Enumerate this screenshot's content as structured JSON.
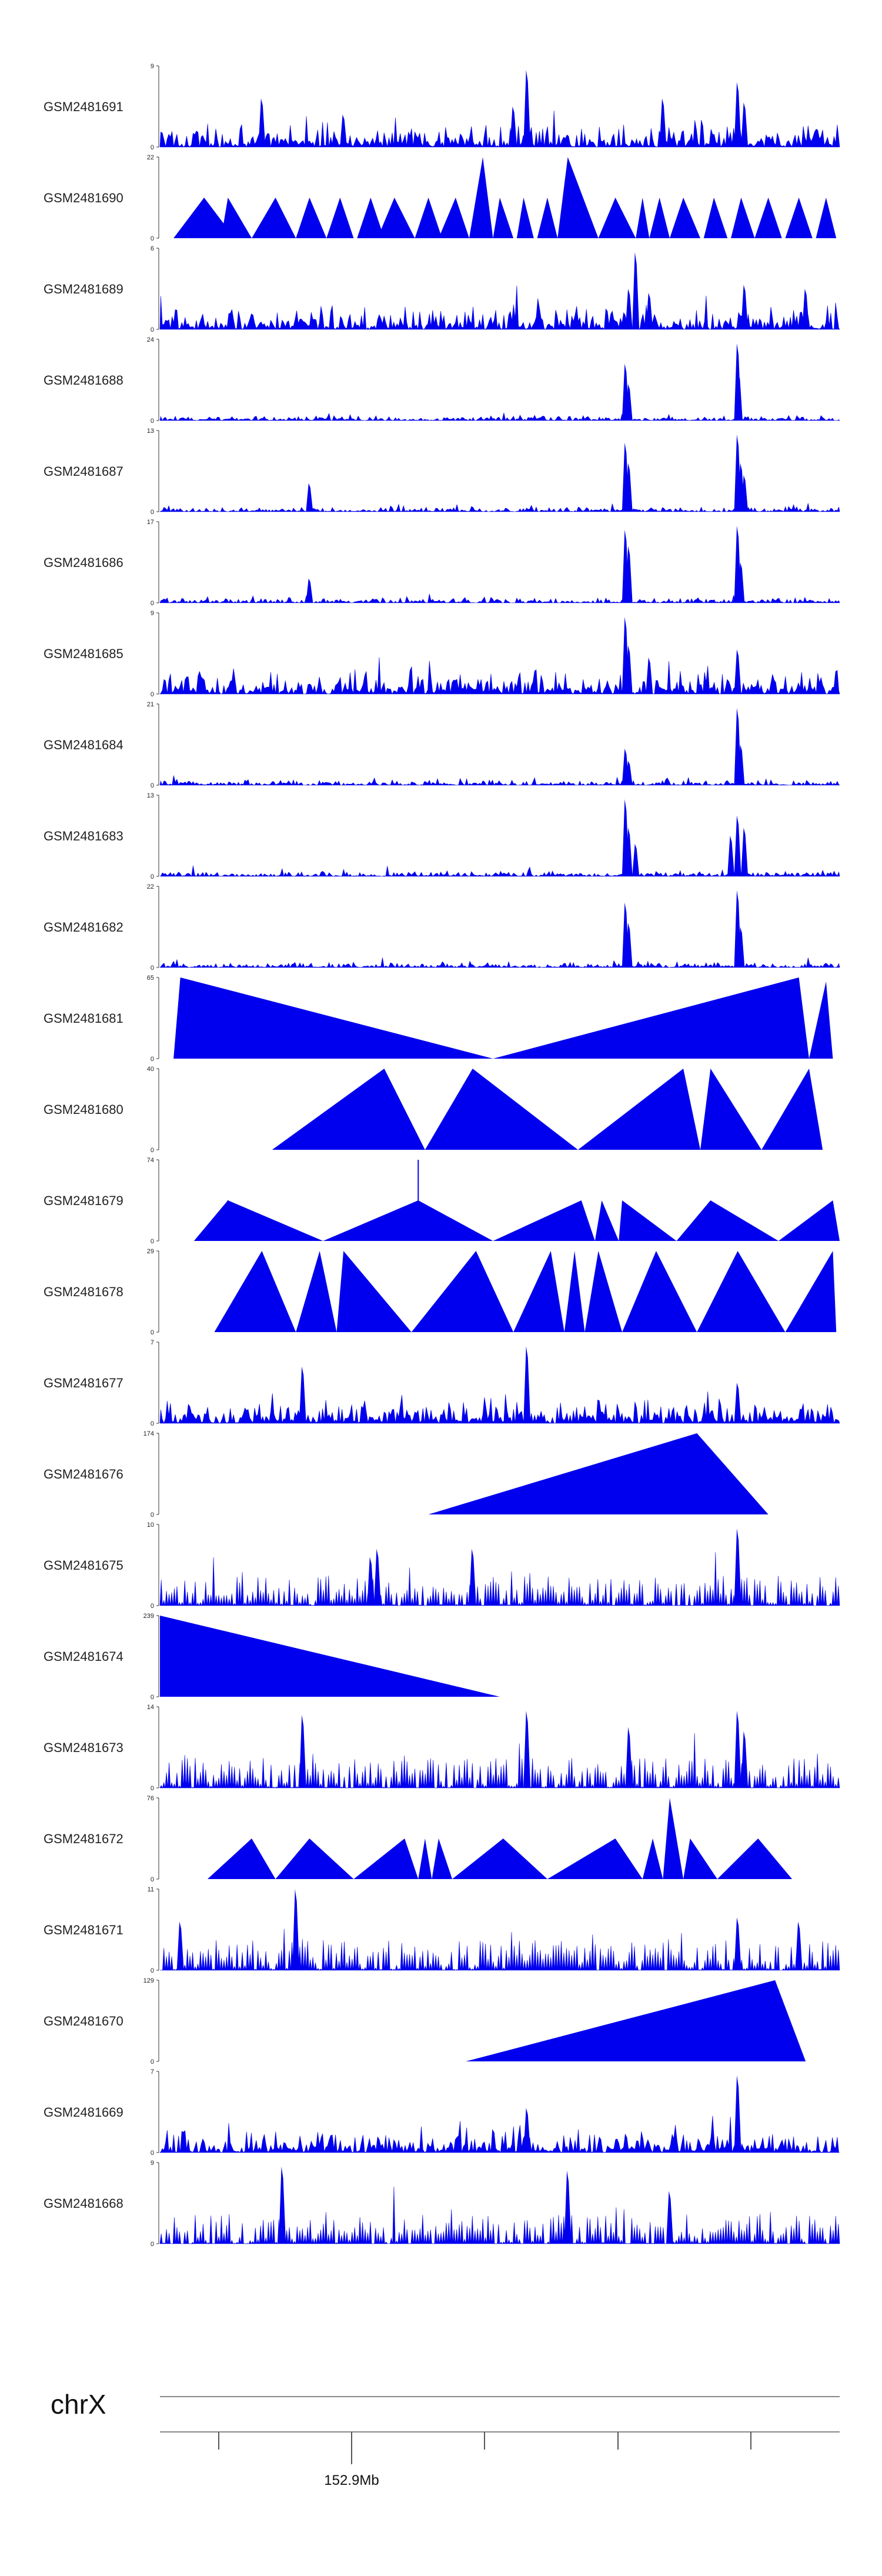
{
  "chart_data": {
    "type": "area",
    "fill_color": "#0000ee",
    "chromosome": "chrX",
    "position_label": "152.9Mb",
    "tracks": [
      {
        "name": "GSM2481691",
        "ymax": 9,
        "ymin": 0,
        "style": "dense",
        "peaks": [
          [
            0.15,
            0.6
          ],
          [
            0.27,
            0.4
          ],
          [
            0.54,
            0.95
          ],
          [
            0.52,
            0.5
          ],
          [
            0.74,
            0.6
          ],
          [
            0.85,
            0.8
          ],
          [
            0.86,
            0.55
          ]
        ]
      },
      {
        "name": "GSM2481690",
        "ymax": 22,
        "ymin": 0,
        "style": "triangles",
        "tris": [
          [
            0.02,
            0.065,
            0.11,
            0.5
          ],
          [
            0.09,
            0.1,
            0.135,
            0.5
          ],
          [
            0.135,
            0.17,
            0.2,
            0.5
          ],
          [
            0.2,
            0.22,
            0.245,
            0.5
          ],
          [
            0.245,
            0.265,
            0.285,
            0.5
          ],
          [
            0.29,
            0.31,
            0.33,
            0.5
          ],
          [
            0.32,
            0.345,
            0.375,
            0.5
          ],
          [
            0.375,
            0.395,
            0.415,
            0.5
          ],
          [
            0.41,
            0.435,
            0.455,
            0.5
          ],
          [
            0.455,
            0.475,
            0.49,
            1.0
          ],
          [
            0.49,
            0.5,
            0.52,
            0.5
          ],
          [
            0.525,
            0.535,
            0.55,
            0.5
          ],
          [
            0.555,
            0.57,
            0.585,
            0.5
          ],
          [
            0.585,
            0.6,
            0.645,
            1.0
          ],
          [
            0.645,
            0.67,
            0.7,
            0.5
          ],
          [
            0.7,
            0.71,
            0.72,
            0.5
          ],
          [
            0.72,
            0.735,
            0.75,
            0.5
          ],
          [
            0.75,
            0.77,
            0.795,
            0.5
          ],
          [
            0.8,
            0.815,
            0.835,
            0.5
          ],
          [
            0.84,
            0.855,
            0.875,
            0.5
          ],
          [
            0.875,
            0.895,
            0.915,
            0.5
          ],
          [
            0.92,
            0.94,
            0.96,
            0.5
          ],
          [
            0.965,
            0.98,
            0.995,
            0.5
          ]
        ]
      },
      {
        "name": "GSM2481689",
        "ymax": 6,
        "ymin": 0,
        "style": "dense",
        "peaks": [
          [
            0.7,
            0.95
          ],
          [
            0.69,
            0.5
          ],
          [
            0.72,
            0.45
          ],
          [
            0.86,
            0.55
          ],
          [
            0.95,
            0.5
          ]
        ]
      },
      {
        "name": "GSM2481688",
        "ymax": 24,
        "ymin": 0,
        "style": "sparse",
        "peaks": [
          [
            0.685,
            0.7
          ],
          [
            0.69,
            0.45
          ],
          [
            0.85,
            0.95
          ],
          [
            0.852,
            0.6
          ]
        ]
      },
      {
        "name": "GSM2481687",
        "ymax": 13,
        "ymin": 0,
        "style": "sparse",
        "peaks": [
          [
            0.685,
            0.85
          ],
          [
            0.69,
            0.6
          ],
          [
            0.85,
            0.95
          ],
          [
            0.855,
            0.6
          ],
          [
            0.22,
            0.35
          ],
          [
            0.86,
            0.45
          ]
        ]
      },
      {
        "name": "GSM2481686",
        "ymax": 17,
        "ymin": 0,
        "style": "sparse",
        "peaks": [
          [
            0.22,
            0.3
          ],
          [
            0.685,
            0.9
          ],
          [
            0.69,
            0.7
          ],
          [
            0.85,
            0.95
          ],
          [
            0.855,
            0.5
          ]
        ]
      },
      {
        "name": "GSM2481685",
        "ymax": 9,
        "ymin": 0,
        "style": "dense",
        "peaks": [
          [
            0.685,
            0.95
          ],
          [
            0.69,
            0.6
          ],
          [
            0.72,
            0.45
          ],
          [
            0.85,
            0.55
          ]
        ]
      },
      {
        "name": "GSM2481684",
        "ymax": 21,
        "ymin": 0,
        "style": "sparse",
        "peaks": [
          [
            0.685,
            0.45
          ],
          [
            0.69,
            0.3
          ],
          [
            0.85,
            0.95
          ],
          [
            0.855,
            0.5
          ]
        ]
      },
      {
        "name": "GSM2481683",
        "ymax": 13,
        "ymin": 0,
        "style": "sparse",
        "peaks": [
          [
            0.685,
            0.95
          ],
          [
            0.69,
            0.6
          ],
          [
            0.7,
            0.4
          ],
          [
            0.84,
            0.5
          ],
          [
            0.85,
            0.75
          ],
          [
            0.86,
            0.6
          ]
        ]
      },
      {
        "name": "GSM2481682",
        "ymax": 22,
        "ymin": 0,
        "style": "sparse",
        "peaks": [
          [
            0.685,
            0.8
          ],
          [
            0.69,
            0.55
          ],
          [
            0.85,
            0.95
          ],
          [
            0.855,
            0.5
          ]
        ]
      },
      {
        "name": "GSM2481681",
        "ymax": 65,
        "ymin": 0,
        "style": "triangles",
        "tris": [
          [
            0.02,
            0.03,
            0.49,
            1.0
          ],
          [
            0.49,
            0.94,
            0.955,
            1.0
          ],
          [
            0.955,
            0.98,
            0.99,
            0.95
          ]
        ]
      },
      {
        "name": "GSM2481680",
        "ymax": 40,
        "ymin": 0,
        "style": "triangles",
        "tris": [
          [
            0.165,
            0.33,
            0.39,
            1.0
          ],
          [
            0.39,
            0.46,
            0.615,
            1.0
          ],
          [
            0.615,
            0.77,
            0.795,
            1.0
          ],
          [
            0.795,
            0.81,
            0.885,
            1.0
          ],
          [
            0.885,
            0.955,
            0.975,
            1.0
          ]
        ]
      },
      {
        "name": "GSM2481679",
        "ymax": 74,
        "ymin": 0,
        "style": "triangles",
        "tris": [
          [
            0.05,
            0.1,
            0.24,
            0.5
          ],
          [
            0.24,
            0.38,
            0.49,
            0.5
          ],
          [
            0.49,
            0.62,
            0.64,
            0.5
          ],
          [
            0.64,
            0.65,
            0.675,
            0.5
          ],
          [
            0.675,
            0.68,
            0.76,
            0.5
          ],
          [
            0.76,
            0.81,
            0.91,
            0.5
          ],
          [
            0.91,
            0.99,
            1.0,
            0.5
          ]
        ],
        "spikes": [
          [
            0.38,
            1.0
          ],
          [
            0.1,
            0.5
          ]
        ]
      },
      {
        "name": "GSM2481678",
        "ymax": 29,
        "ymin": 0,
        "style": "triangles",
        "tris": [
          [
            0.08,
            0.15,
            0.2,
            1.0
          ],
          [
            0.2,
            0.235,
            0.26,
            1.0
          ],
          [
            0.26,
            0.27,
            0.37,
            1.0
          ],
          [
            0.37,
            0.465,
            0.52,
            1.0
          ],
          [
            0.52,
            0.575,
            0.595,
            1.0
          ],
          [
            0.595,
            0.61,
            0.625,
            1.0
          ],
          [
            0.625,
            0.645,
            0.68,
            1.0
          ],
          [
            0.68,
            0.73,
            0.79,
            1.0
          ],
          [
            0.79,
            0.85,
            0.92,
            1.0
          ],
          [
            0.92,
            0.99,
            0.995,
            1.0
          ]
        ]
      },
      {
        "name": "GSM2481677",
        "ymax": 7,
        "ymin": 0,
        "style": "dense",
        "peaks": [
          [
            0.54,
            0.95
          ],
          [
            0.21,
            0.7
          ],
          [
            0.85,
            0.5
          ]
        ]
      },
      {
        "name": "GSM2481676",
        "ymax": 174,
        "ymin": 0,
        "style": "triangles",
        "tris": [
          [
            0.395,
            0.79,
            0.895,
            1.0
          ]
        ]
      },
      {
        "name": "GSM2481675",
        "ymax": 10,
        "ymin": 0,
        "style": "spiky",
        "peaks": [
          [
            0.85,
            0.95
          ],
          [
            0.32,
            0.7
          ],
          [
            0.46,
            0.7
          ],
          [
            0.31,
            0.6
          ]
        ]
      },
      {
        "name": "GSM2481674",
        "ymax": 239,
        "ymin": 0,
        "style": "triangles",
        "tris": [
          [
            0.0,
            0.0,
            0.5,
            1.0
          ]
        ]
      },
      {
        "name": "GSM2481673",
        "ymax": 14,
        "ymin": 0,
        "style": "spiky",
        "peaks": [
          [
            0.21,
            0.9
          ],
          [
            0.54,
            0.95
          ],
          [
            0.69,
            0.75
          ],
          [
            0.85,
            0.95
          ],
          [
            0.86,
            0.7
          ]
        ]
      },
      {
        "name": "GSM2481672",
        "ymax": 76,
        "ymin": 0,
        "style": "triangles",
        "tris": [
          [
            0.07,
            0.135,
            0.17,
            0.5
          ],
          [
            0.17,
            0.22,
            0.285,
            0.5
          ],
          [
            0.285,
            0.36,
            0.38,
            0.5
          ],
          [
            0.38,
            0.39,
            0.4,
            0.5
          ],
          [
            0.4,
            0.41,
            0.43,
            0.5
          ],
          [
            0.43,
            0.505,
            0.57,
            0.5
          ],
          [
            0.57,
            0.67,
            0.71,
            0.5
          ],
          [
            0.71,
            0.725,
            0.74,
            0.5
          ],
          [
            0.74,
            0.75,
            0.77,
            1.0
          ],
          [
            0.77,
            0.78,
            0.82,
            0.5
          ],
          [
            0.82,
            0.88,
            0.93,
            0.5
          ]
        ]
      },
      {
        "name": "GSM2481671",
        "ymax": 11,
        "ymin": 0,
        "style": "spiky",
        "peaks": [
          [
            0.2,
            1.0
          ],
          [
            0.03,
            0.6
          ],
          [
            0.85,
            0.65
          ],
          [
            0.94,
            0.6
          ]
        ]
      },
      {
        "name": "GSM2481670",
        "ymax": 129,
        "ymin": 0,
        "style": "triangles",
        "tris": [
          [
            0.45,
            0.905,
            0.95,
            1.0
          ]
        ]
      },
      {
        "name": "GSM2481669",
        "ymax": 7,
        "ymin": 0,
        "style": "dense",
        "peaks": [
          [
            0.85,
            0.95
          ],
          [
            0.54,
            0.55
          ]
        ]
      },
      {
        "name": "GSM2481668",
        "ymax": 9,
        "ymin": 0,
        "style": "spiky",
        "peaks": [
          [
            0.18,
            0.95
          ],
          [
            0.6,
            0.9
          ],
          [
            0.75,
            0.65
          ]
        ]
      }
    ]
  }
}
